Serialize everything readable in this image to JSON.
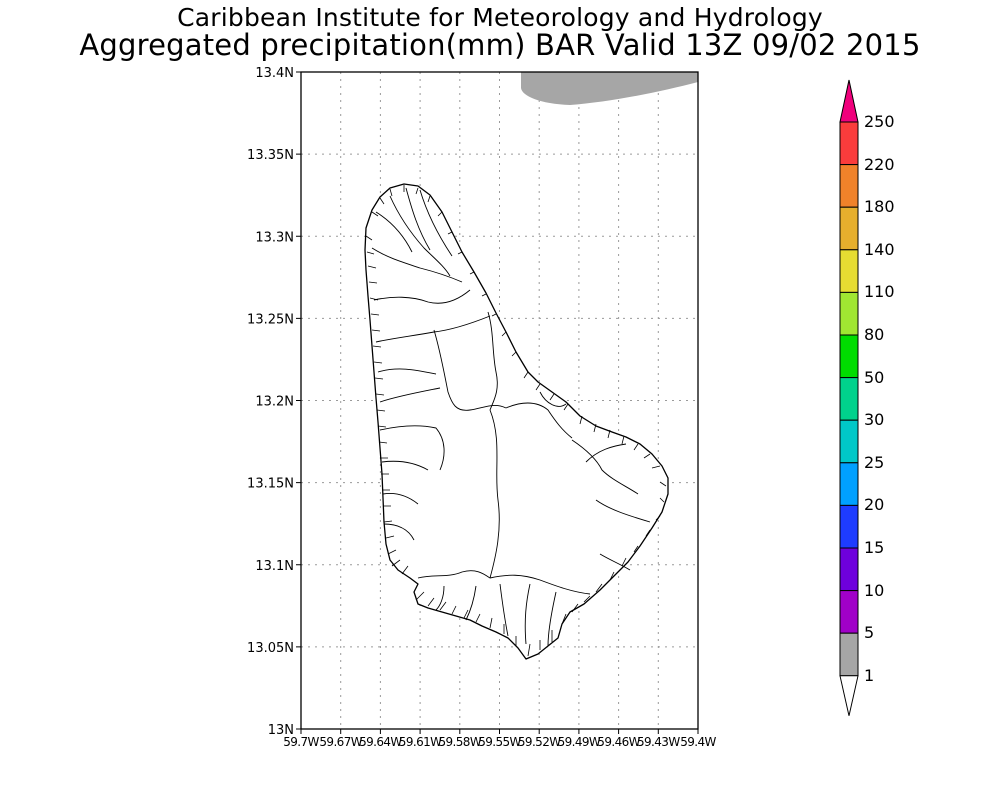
{
  "header": {
    "title": "Caribbean Institute for Meteorology and Hydrology",
    "subtitle": "Aggregated precipitation(mm) BAR Valid 13Z 09/02 2015"
  },
  "map": {
    "lat_ticks": [
      "13.4N",
      "13.35N",
      "13.3N",
      "13.25N",
      "13.2N",
      "13.15N",
      "13.1N",
      "13.05N",
      "13N"
    ],
    "lon_ticks": [
      "59.7W",
      "59.67W",
      "59.64W",
      "59.61W",
      "59.58W",
      "59.55W",
      "59.52W",
      "59.49W",
      "59.46W",
      "59.43W",
      "59.4W"
    ],
    "grid": true,
    "rain_area_color": "#a6a6a6"
  },
  "colorbar": {
    "levels": [
      {
        "label": "250",
        "color": "#f0007c"
      },
      {
        "label": "220",
        "color": "#fa3c3c"
      },
      {
        "label": "180",
        "color": "#f0822a"
      },
      {
        "label": "140",
        "color": "#e6af2d"
      },
      {
        "label": "110",
        "color": "#e6dc32"
      },
      {
        "label": "80",
        "color": "#a0e632"
      },
      {
        "label": "50",
        "color": "#00dc00"
      },
      {
        "label": "30",
        "color": "#00d28c"
      },
      {
        "label": "25",
        "color": "#00c8c8"
      },
      {
        "label": "20",
        "color": "#00a0ff"
      },
      {
        "label": "15",
        "color": "#1e3cff"
      },
      {
        "label": "10",
        "color": "#6e00dc"
      },
      {
        "label": "5",
        "color": "#a000c8"
      },
      {
        "label": "1",
        "color": "#a6a6a6"
      }
    ]
  }
}
